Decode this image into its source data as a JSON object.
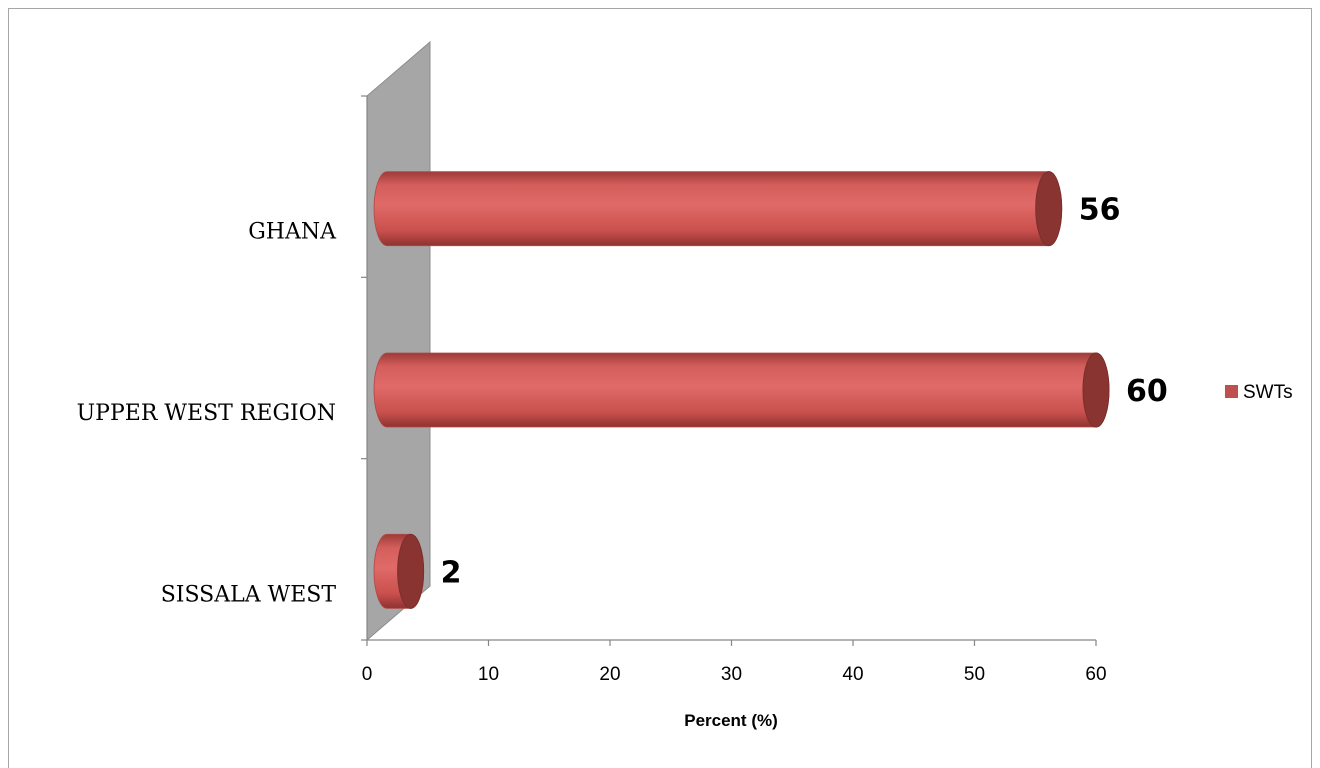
{
  "chart_data": {
    "type": "bar",
    "orientation": "horizontal",
    "style": "3d-cylinder",
    "categories": [
      "GHANA",
      "UPPER WEST REGION",
      "SISSALA WEST"
    ],
    "series": [
      {
        "name": "SWTs",
        "values": [
          56,
          60,
          2
        ],
        "color": "#c0504d"
      }
    ],
    "data_labels": [
      "56",
      "60",
      "2"
    ],
    "xlabel": "Percent (%)",
    "ylabel": "",
    "xlim": [
      0,
      60
    ],
    "xticks": [
      0,
      10,
      20,
      30,
      40,
      50,
      60
    ],
    "tick_labels": [
      "0",
      "10",
      "20",
      "30",
      "40",
      "50",
      "60"
    ],
    "grid": false,
    "legend": {
      "placement": "right",
      "entries": [
        "SWTs"
      ]
    },
    "wall_color": "#a6a6a6"
  }
}
